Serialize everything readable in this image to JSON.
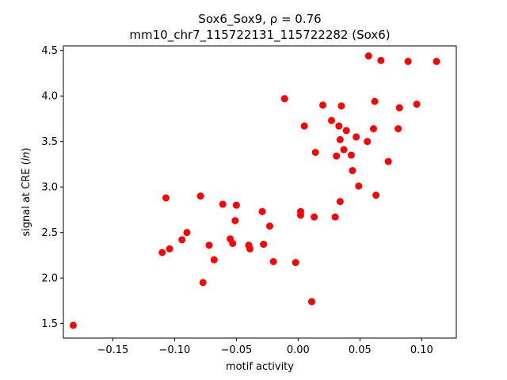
{
  "chart_data": {
    "type": "scatter",
    "title": "Sox6_Sox9, ρ = 0.76",
    "title_line2": "mm10_chr7_115722131_115722282 (Sox6)",
    "xlabel": "motif activity",
    "ylabel_prefix": "signal at CRE (",
    "ylabel_italic": "ln",
    "ylabel_suffix": ")",
    "xlim": [
      -0.19,
      0.128
    ],
    "ylim": [
      1.34,
      4.55
    ],
    "xticks": [
      {
        "value": -0.15,
        "label": "−0.15"
      },
      {
        "value": -0.1,
        "label": "−0.10"
      },
      {
        "value": -0.05,
        "label": "−0.05"
      },
      {
        "value": 0.0,
        "label": "0.00"
      },
      {
        "value": 0.05,
        "label": "0.05"
      },
      {
        "value": 0.1,
        "label": "0.10"
      }
    ],
    "yticks": [
      {
        "value": 1.5,
        "label": "1.5"
      },
      {
        "value": 2.0,
        "label": "2.0"
      },
      {
        "value": 2.5,
        "label": "2.5"
      },
      {
        "value": 3.0,
        "label": "3.0"
      },
      {
        "value": 3.5,
        "label": "3.5"
      },
      {
        "value": 4.0,
        "label": "4.0"
      },
      {
        "value": 4.5,
        "label": "4.5"
      }
    ],
    "grid": false,
    "marker_color": "#ff0000",
    "points": [
      {
        "x": -0.182,
        "y": 1.48
      },
      {
        "x": -0.11,
        "y": 2.28
      },
      {
        "x": -0.107,
        "y": 2.88
      },
      {
        "x": -0.104,
        "y": 2.32
      },
      {
        "x": -0.094,
        "y": 2.42
      },
      {
        "x": -0.09,
        "y": 2.5
      },
      {
        "x": -0.079,
        "y": 2.9
      },
      {
        "x": -0.077,
        "y": 1.95
      },
      {
        "x": -0.072,
        "y": 2.36
      },
      {
        "x": -0.068,
        "y": 2.2
      },
      {
        "x": -0.061,
        "y": 2.81
      },
      {
        "x": -0.055,
        "y": 2.43
      },
      {
        "x": -0.053,
        "y": 2.38
      },
      {
        "x": -0.051,
        "y": 2.63
      },
      {
        "x": -0.05,
        "y": 2.8
      },
      {
        "x": -0.04,
        "y": 2.36
      },
      {
        "x": -0.039,
        "y": 2.32
      },
      {
        "x": -0.029,
        "y": 2.73
      },
      {
        "x": -0.028,
        "y": 2.37
      },
      {
        "x": -0.023,
        "y": 2.57
      },
      {
        "x": -0.02,
        "y": 2.18
      },
      {
        "x": -0.011,
        "y": 3.97
      },
      {
        "x": -0.002,
        "y": 2.17
      },
      {
        "x": 0.002,
        "y": 2.73
      },
      {
        "x": 0.002,
        "y": 2.69
      },
      {
        "x": 0.005,
        "y": 3.67
      },
      {
        "x": 0.011,
        "y": 1.74
      },
      {
        "x": 0.013,
        "y": 2.67
      },
      {
        "x": 0.014,
        "y": 3.38
      },
      {
        "x": 0.02,
        "y": 3.9
      },
      {
        "x": 0.027,
        "y": 3.73
      },
      {
        "x": 0.03,
        "y": 2.67
      },
      {
        "x": 0.031,
        "y": 3.34
      },
      {
        "x": 0.033,
        "y": 3.67
      },
      {
        "x": 0.034,
        "y": 2.84
      },
      {
        "x": 0.034,
        "y": 3.52
      },
      {
        "x": 0.035,
        "y": 3.89
      },
      {
        "x": 0.037,
        "y": 3.41
      },
      {
        "x": 0.039,
        "y": 3.62
      },
      {
        "x": 0.043,
        "y": 3.35
      },
      {
        "x": 0.044,
        "y": 3.18
      },
      {
        "x": 0.047,
        "y": 3.55
      },
      {
        "x": 0.049,
        "y": 3.01
      },
      {
        "x": 0.056,
        "y": 3.5
      },
      {
        "x": 0.057,
        "y": 4.44
      },
      {
        "x": 0.061,
        "y": 3.64
      },
      {
        "x": 0.062,
        "y": 3.94
      },
      {
        "x": 0.063,
        "y": 2.91
      },
      {
        "x": 0.067,
        "y": 4.39
      },
      {
        "x": 0.073,
        "y": 3.28
      },
      {
        "x": 0.081,
        "y": 3.64
      },
      {
        "x": 0.082,
        "y": 3.87
      },
      {
        "x": 0.089,
        "y": 4.38
      },
      {
        "x": 0.096,
        "y": 3.91
      },
      {
        "x": 0.112,
        "y": 4.38
      }
    ]
  }
}
